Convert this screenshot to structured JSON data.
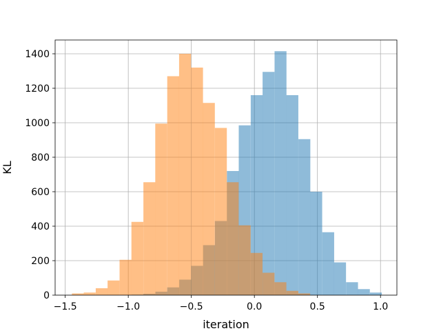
{
  "chart_data": {
    "type": "bar",
    "subtype": "overlapping-histogram",
    "title": "",
    "xlabel": "iteration",
    "ylabel": "KL",
    "xlim": [
      -1.58,
      1.13
    ],
    "ylim": [
      0,
      1480
    ],
    "grid": true,
    "legend": "none",
    "xticks": [
      -1.5,
      -1.0,
      -0.5,
      0.0,
      0.5,
      1.0
    ],
    "xtick_labels": [
      "−1.5",
      "−1.0",
      "−0.5",
      "0.0",
      "0.5",
      "1.0"
    ],
    "yticks": [
      0,
      200,
      400,
      600,
      800,
      1000,
      1200,
      1400
    ],
    "ytick_labels": [
      "0",
      "200",
      "400",
      "600",
      "800",
      "1000",
      "1200",
      "1400"
    ],
    "series": [
      {
        "color": "#1f77b4",
        "alpha": 0.5,
        "bin_width": 0.0945,
        "bin_starts": [
          -0.974,
          -0.88,
          -0.785,
          -0.691,
          -0.596,
          -0.502,
          -0.407,
          -0.313,
          -0.218,
          -0.124,
          -0.029,
          0.065,
          0.16,
          0.254,
          0.349,
          0.443,
          0.538,
          0.632,
          0.727,
          0.821,
          0.916
        ],
        "values": [
          3,
          8,
          20,
          45,
          90,
          170,
          290,
          430,
          720,
          985,
          1160,
          1295,
          1415,
          1160,
          905,
          600,
          365,
          190,
          75,
          35,
          15
        ]
      },
      {
        "color": "#ff7f0e",
        "alpha": 0.5,
        "bin_width": 0.0945,
        "bin_starts": [
          -1.447,
          -1.353,
          -1.258,
          -1.164,
          -1.069,
          -0.975,
          -0.88,
          -0.786,
          -0.691,
          -0.597,
          -0.502,
          -0.408,
          -0.313,
          -0.219,
          -0.124,
          -0.03,
          0.065,
          0.159,
          0.254,
          0.348
        ],
        "values": [
          10,
          15,
          40,
          85,
          205,
          425,
          655,
          995,
          1270,
          1400,
          1320,
          1115,
          970,
          655,
          405,
          245,
          130,
          75,
          25,
          10
        ]
      }
    ]
  }
}
